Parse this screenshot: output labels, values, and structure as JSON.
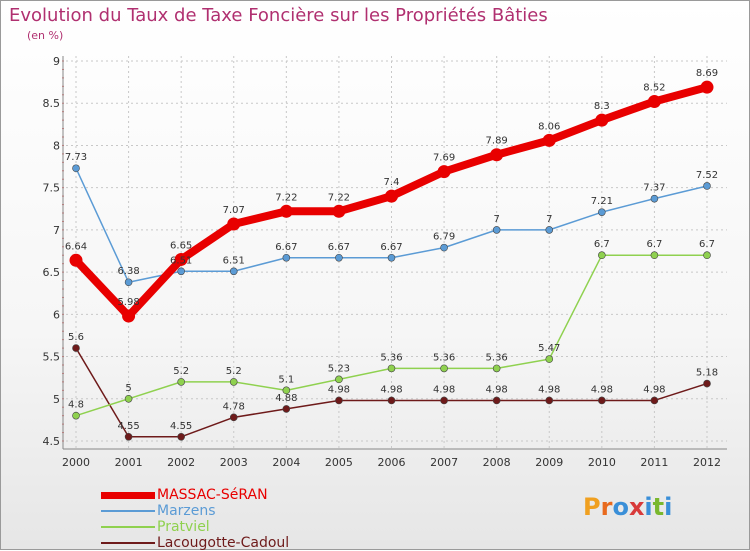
{
  "header": {
    "title": "Evolution du Taux de Taxe Foncière sur les Propriétés Bâties",
    "unit": "(en %)"
  },
  "brand": {
    "letters": [
      "P",
      "r",
      "o",
      "x",
      "i",
      "t",
      "i"
    ],
    "colors": [
      "#f0a020",
      "#e86a1e",
      "#3a8fd8",
      "#d83a3a",
      "#3a8fd8",
      "#7ab82e",
      "#3a8fd8"
    ]
  },
  "chart_data": {
    "type": "line",
    "title": "Evolution du Taux de Taxe Foncière sur les Propriétés Bâties",
    "ylabel": "(en %)",
    "xlabel": "",
    "categories": [
      "2000",
      "2001",
      "2002",
      "2003",
      "2004",
      "2005",
      "2006",
      "2007",
      "2008",
      "2009",
      "2010",
      "2011",
      "2012"
    ],
    "ylim": [
      4.5,
      9
    ],
    "yticks": [
      "4.5",
      "5",
      "5.5",
      "6",
      "6.5",
      "7",
      "7.5",
      "8",
      "8.5",
      "9"
    ],
    "grid": true,
    "legend": "bottom-left",
    "series": [
      {
        "name": "Lacougotte-Cadoul",
        "color": "#6e1a1a",
        "values": [
          5.6,
          4.55,
          4.55,
          4.78,
          4.88,
          4.98,
          4.98,
          4.98,
          4.98,
          4.98,
          4.98,
          4.98,
          5.18
        ],
        "labels": [
          "5.6",
          "4.55",
          "4.55",
          "4.78",
          "4.88",
          "4.98",
          "4.98",
          "4.98",
          "4.98",
          "4.98",
          "4.98",
          "4.98",
          "5.18"
        ]
      },
      {
        "name": "Pratviel",
        "color": "#8fd14f",
        "values": [
          4.8,
          5,
          5.2,
          5.2,
          5.1,
          5.23,
          5.36,
          5.36,
          5.36,
          5.47,
          6.7,
          6.7,
          6.7
        ],
        "labels": [
          "4.8",
          "5",
          "5.2",
          "5.2",
          "5.1",
          "5.23",
          "5.36",
          "5.36",
          "5.36",
          "5.47",
          "6.7",
          "6.7",
          "6.7"
        ]
      },
      {
        "name": "Marzens",
        "color": "#5b9bd5",
        "values": [
          7.73,
          6.38,
          6.51,
          6.51,
          6.67,
          6.67,
          6.67,
          6.79,
          7,
          7,
          7.21,
          7.37,
          7.52
        ],
        "labels": [
          "7.73",
          "6.38",
          "6.51",
          "6.51",
          "6.67",
          "6.67",
          "6.67",
          "6.79",
          "7",
          "7",
          "7.21",
          "7.37",
          "7.52"
        ]
      },
      {
        "name": "MASSAC-SéRAN",
        "color": "#e80000",
        "values": [
          6.64,
          5.98,
          6.65,
          7.07,
          7.22,
          7.22,
          7.4,
          7.69,
          7.89,
          8.06,
          8.3,
          8.52,
          8.69
        ],
        "labels": [
          "6.64",
          "5.98",
          "6.65",
          "7.07",
          "7.22",
          "7.22",
          "7.4",
          "7.69",
          "7.89",
          "8.06",
          "8.3",
          "8.52",
          "8.69"
        ]
      }
    ],
    "legend_entries": [
      {
        "name": "MASSAC-SéRAN",
        "color": "#e80000"
      },
      {
        "name": "Marzens",
        "color": "#5b9bd5"
      },
      {
        "name": "Pratviel",
        "color": "#8fd14f"
      },
      {
        "name": "Lacougotte-Cadoul",
        "color": "#6e1a1a"
      }
    ]
  }
}
